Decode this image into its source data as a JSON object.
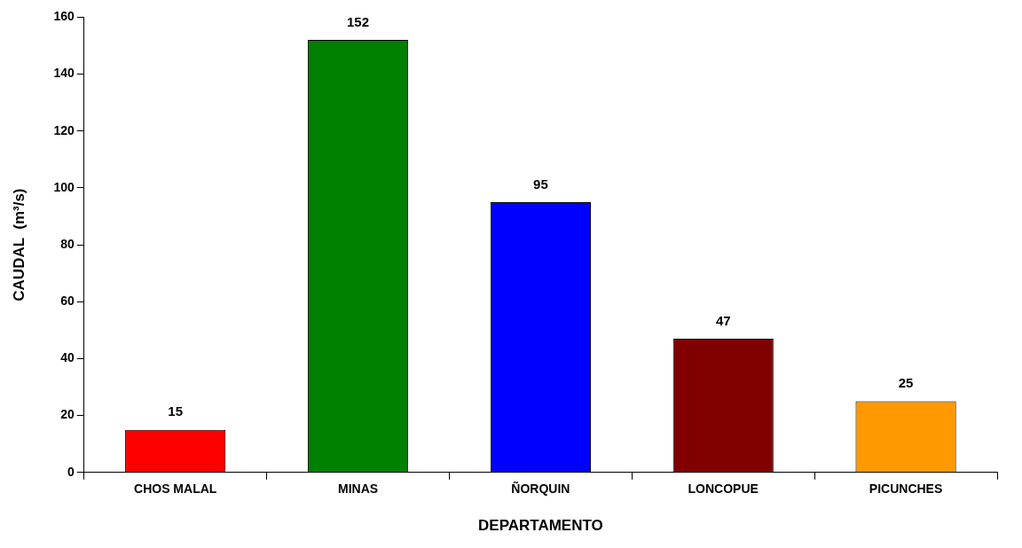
{
  "chart_data": {
    "type": "bar",
    "xlabel": "DEPARTAMENTO",
    "ylabel": "CAUDAL  (m³/s)",
    "categories": [
      "CHOS MALAL",
      "MINAS",
      "ÑORQUIN",
      "LONCOPUE",
      "PICUNCHES"
    ],
    "values": [
      15,
      152,
      95,
      47,
      25
    ],
    "colors": [
      "#ff0000",
      "#008000",
      "#0000ff",
      "#800000",
      "#ff9900"
    ],
    "ylim": [
      0,
      160
    ],
    "yticks": [
      0,
      20,
      40,
      60,
      80,
      100,
      120,
      140,
      160
    ],
    "data_labels": true,
    "grid": false,
    "legend": false
  }
}
